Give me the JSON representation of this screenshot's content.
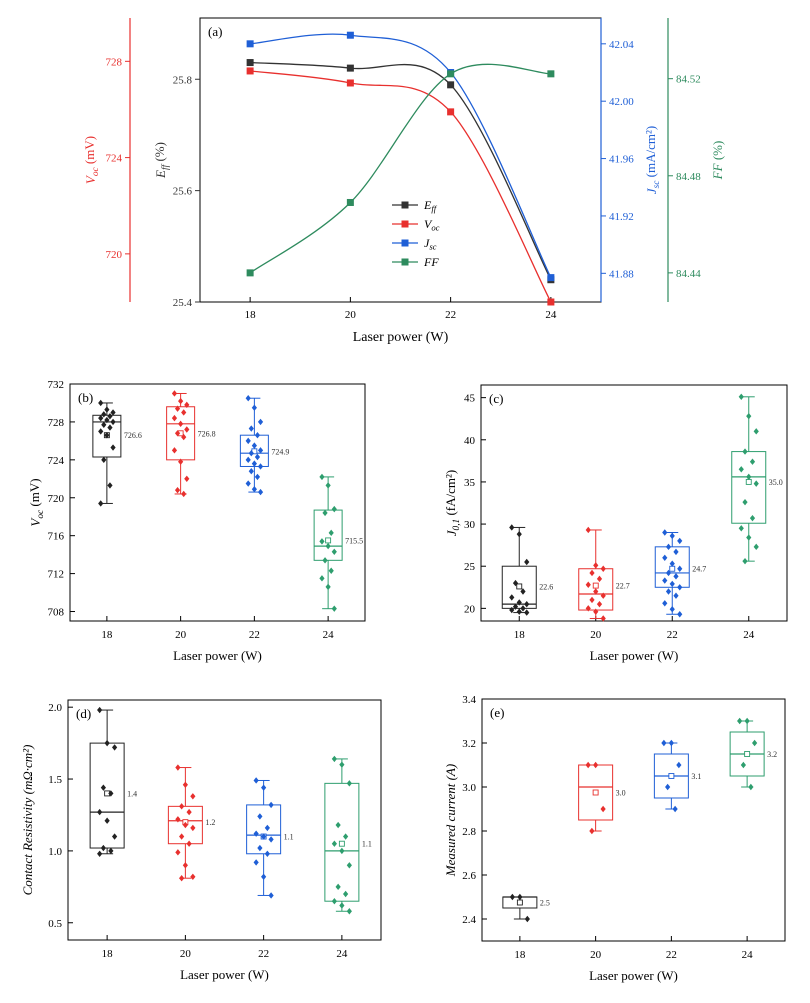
{
  "chart_data": [
    {
      "panel": "(a)",
      "type": "line",
      "xlabel": "Laser power (W)",
      "x": [
        18,
        20,
        22,
        24
      ],
      "xticks": [
        "18",
        "20",
        "22",
        "24"
      ],
      "axes": {
        "voc": {
          "label_main": "V",
          "label_sub": "oc",
          "label_unit": " (mV)",
          "range": [
            718,
            729.8
          ],
          "ticks": [
            720,
            724,
            728
          ],
          "tick_labels": [
            "720",
            "724",
            "728"
          ],
          "color": "#e8302e"
        },
        "eff": {
          "label_main": "E",
          "label_sub": "ff",
          "label_unit": " (%)",
          "range": [
            25.4,
            25.91
          ],
          "ticks": [
            25.4,
            25.6,
            25.8
          ],
          "tick_labels": [
            "25.4",
            "25.6",
            "25.8"
          ],
          "color": "#333333"
        },
        "jsc": {
          "label_main": "J",
          "label_sub": "sc",
          "label_unit": " (mA/cm²)",
          "range": [
            41.86,
            42.058
          ],
          "ticks": [
            41.88,
            41.92,
            41.96,
            42.0,
            42.04
          ],
          "tick_labels": [
            "41.88",
            "41.92",
            "41.96",
            "42.00",
            "42.04"
          ],
          "color": "#1f5fd6"
        },
        "ff": {
          "label_main": "FF",
          "label_unit": " (%)",
          "range": [
            84.428,
            84.545
          ],
          "ticks": [
            84.44,
            84.48,
            84.52
          ],
          "tick_labels": [
            "84.44",
            "84.48",
            "84.52"
          ],
          "color": "#2e8b5e"
        }
      },
      "series": [
        {
          "name": "Eff",
          "label_main": "E",
          "label_sub": "ff",
          "axis": "eff",
          "color": "#333333",
          "values": [
            25.83,
            25.82,
            25.79,
            25.44
          ]
        },
        {
          "name": "Voc",
          "label_main": "V",
          "label_sub": "oc",
          "axis": "voc",
          "color": "#e8302e",
          "values": [
            727.6,
            727.1,
            725.9,
            718.0
          ]
        },
        {
          "name": "Jsc",
          "label_main": "J",
          "label_sub": "sc",
          "axis": "jsc",
          "color": "#1f5fd6",
          "values": [
            42.04,
            42.046,
            42.02,
            41.877
          ]
        },
        {
          "name": "FF",
          "label_main": "FF",
          "axis": "ff",
          "color": "#2e8b5e",
          "values": [
            84.44,
            84.469,
            84.522,
            84.522
          ]
        }
      ]
    },
    {
      "panel": "(b)",
      "type": "box",
      "ylabel_main": "V",
      "ylabel_sub": "oc",
      "ylabel_unit": " (mV)",
      "xlabel": "Laser power (W)",
      "categories": [
        "18",
        "20",
        "22",
        "24"
      ],
      "colors": [
        "#222222",
        "#e8302e",
        "#1f5fd6",
        "#2e9e6e"
      ],
      "ylim": [
        707,
        732
      ],
      "yticks": [
        708,
        712,
        716,
        720,
        724,
        728,
        732
      ],
      "boxes": [
        {
          "min": 719.4,
          "q1": 724.3,
          "median": 728.0,
          "q3": 728.7,
          "max": 730.0,
          "mean": 726.6,
          "mean_label": "726.6",
          "points": [
            730.0,
            729.3,
            729.0,
            728.8,
            728.6,
            728.4,
            728.2,
            728.0,
            727.7,
            727.4,
            727.0,
            726.6,
            725.3,
            724.0,
            721.3,
            719.4
          ]
        },
        {
          "min": 720.4,
          "q1": 724.0,
          "median": 727.8,
          "q3": 729.6,
          "max": 731.0,
          "mean": 726.8,
          "mean_label": "726.8",
          "points": [
            731.0,
            730.2,
            729.8,
            729.4,
            729.0,
            728.4,
            727.8,
            727.2,
            726.8,
            726.4,
            725.0,
            723.8,
            722.0,
            720.8,
            720.4
          ]
        },
        {
          "min": 720.6,
          "q1": 723.3,
          "median": 724.7,
          "q3": 726.6,
          "max": 730.5,
          "mean": 724.9,
          "mean_label": "724.9",
          "points": [
            730.5,
            729.5,
            728.0,
            727.3,
            726.6,
            726.0,
            725.5,
            725.0,
            724.7,
            724.3,
            724.0,
            723.6,
            723.3,
            722.8,
            722.2,
            721.5,
            720.9,
            720.6
          ]
        },
        {
          "min": 708.3,
          "q1": 713.4,
          "median": 714.9,
          "q3": 718.7,
          "max": 722.2,
          "mean": 715.5,
          "mean_label": "715.5",
          "points": [
            722.2,
            721.3,
            718.8,
            718.4,
            716.3,
            715.4,
            714.9,
            714.3,
            713.4,
            712.3,
            711.5,
            710.6,
            708.3
          ]
        }
      ]
    },
    {
      "panel": "(c)",
      "type": "box",
      "ylabel_main": "J",
      "ylabel_sub": "0,1",
      "ylabel_unit": " (fA/cm²)",
      "xlabel": "Laser power (W)",
      "categories": [
        "18",
        "20",
        "22",
        "24"
      ],
      "colors": [
        "#222222",
        "#e8302e",
        "#1f5fd6",
        "#2e9e6e"
      ],
      "ylim": [
        18.5,
        46.5
      ],
      "yticks": [
        20,
        25,
        30,
        35,
        40,
        45
      ],
      "boxes": [
        {
          "min": 19.5,
          "q1": 20.0,
          "median": 20.5,
          "q3": 25.0,
          "max": 29.6,
          "mean": 22.6,
          "mean_label": "22.6",
          "points": [
            29.6,
            28.8,
            25.5,
            23.0,
            22.0,
            21.3,
            20.7,
            20.5,
            20.2,
            20.0,
            19.8,
            19.6,
            19.5
          ]
        },
        {
          "min": 18.8,
          "q1": 19.8,
          "median": 21.7,
          "q3": 24.7,
          "max": 29.3,
          "mean": 22.7,
          "mean_label": "22.7",
          "points": [
            29.3,
            25.1,
            24.7,
            24.2,
            23.5,
            22.8,
            22.0,
            21.5,
            21.0,
            20.5,
            20.0,
            19.6,
            18.8
          ]
        },
        {
          "min": 19.3,
          "q1": 22.5,
          "median": 24.2,
          "q3": 27.3,
          "max": 29.0,
          "mean": 24.7,
          "mean_label": "24.7",
          "points": [
            29.0,
            28.6,
            28.0,
            27.3,
            26.7,
            26.0,
            25.3,
            24.7,
            24.2,
            23.8,
            23.3,
            22.9,
            22.5,
            22.0,
            21.5,
            20.6,
            19.9,
            19.3
          ]
        },
        {
          "min": 25.6,
          "q1": 30.1,
          "median": 35.6,
          "q3": 38.6,
          "max": 45.1,
          "mean": 35.0,
          "mean_label": "35.0",
          "points": [
            45.1,
            42.8,
            41.0,
            38.6,
            37.4,
            36.5,
            35.6,
            34.8,
            32.6,
            30.7,
            29.5,
            28.4,
            27.3,
            25.6
          ]
        }
      ]
    },
    {
      "panel": "(d)",
      "type": "box",
      "ylabel_main": "Contact Resistivity (mΩ·cm²)",
      "xlabel": "Laser power (W)",
      "categories": [
        "18",
        "20",
        "22",
        "24"
      ],
      "colors": [
        "#222222",
        "#e8302e",
        "#1f5fd6",
        "#2e9e6e"
      ],
      "ylim": [
        0.38,
        2.05
      ],
      "yticks": [
        0.5,
        1.0,
        1.5,
        2.0
      ],
      "ytick_labels": [
        "0.5",
        "1.0",
        "1.5",
        "2.0"
      ],
      "boxes": [
        {
          "min": 0.98,
          "q1": 1.02,
          "median": 1.27,
          "q3": 1.75,
          "max": 1.98,
          "mean": 1.4,
          "mean_label": "1.4",
          "points": [
            1.98,
            1.75,
            1.72,
            1.44,
            1.4,
            1.27,
            1.21,
            1.1,
            1.02,
            1.0,
            0.98
          ]
        },
        {
          "min": 0.81,
          "q1": 1.05,
          "median": 1.21,
          "q3": 1.31,
          "max": 1.58,
          "mean": 1.2,
          "mean_label": "1.2",
          "points": [
            1.58,
            1.46,
            1.38,
            1.31,
            1.27,
            1.22,
            1.18,
            1.16,
            1.1,
            1.05,
            0.99,
            0.9,
            0.82,
            0.81
          ]
        },
        {
          "min": 0.69,
          "q1": 0.98,
          "median": 1.11,
          "q3": 1.32,
          "max": 1.49,
          "mean": 1.1,
          "mean_label": "1.1",
          "points": [
            1.49,
            1.44,
            1.32,
            1.24,
            1.16,
            1.12,
            1.1,
            1.08,
            1.02,
            0.98,
            0.92,
            0.82,
            0.69
          ]
        },
        {
          "min": 0.58,
          "q1": 0.65,
          "median": 1.0,
          "q3": 1.47,
          "max": 1.64,
          "mean": 1.05,
          "mean_label": "1.1",
          "points": [
            1.64,
            1.6,
            1.47,
            1.18,
            1.1,
            1.05,
            1.0,
            0.9,
            0.75,
            0.7,
            0.65,
            0.62,
            0.58
          ]
        }
      ]
    },
    {
      "panel": "(e)",
      "type": "box",
      "ylabel_main": "Measured current (A)",
      "xlabel": "Laser power (W)",
      "categories": [
        "18",
        "20",
        "22",
        "24"
      ],
      "colors": [
        "#222222",
        "#e8302e",
        "#1f5fd6",
        "#2e9e6e"
      ],
      "ylim": [
        2.3,
        3.4
      ],
      "yticks": [
        2.4,
        2.6,
        2.8,
        3.0,
        3.2,
        3.4
      ],
      "ytick_labels": [
        "2.4",
        "2.6",
        "2.8",
        "3.0",
        "3.2",
        "3.4"
      ],
      "boxes": [
        {
          "min": 2.4,
          "q1": 2.45,
          "median": 2.5,
          "q3": 2.5,
          "max": 2.5,
          "mean": 2.475,
          "mean_label": "2.5",
          "points": [
            2.5,
            2.5,
            2.4
          ]
        },
        {
          "min": 2.8,
          "q1": 2.85,
          "median": 3.0,
          "q3": 3.1,
          "max": 3.1,
          "mean": 2.975,
          "mean_label": "3.0",
          "points": [
            3.1,
            3.1,
            2.9,
            2.8
          ]
        },
        {
          "min": 2.9,
          "q1": 2.95,
          "median": 3.05,
          "q3": 3.15,
          "max": 3.2,
          "mean": 3.05,
          "mean_label": "3.1",
          "points": [
            3.2,
            3.2,
            3.1,
            3.0,
            2.9
          ]
        },
        {
          "min": 3.0,
          "q1": 3.05,
          "median": 3.15,
          "q3": 3.25,
          "max": 3.3,
          "mean": 3.15,
          "mean_label": "3.2",
          "points": [
            3.3,
            3.3,
            3.2,
            3.1,
            3.0
          ]
        }
      ]
    }
  ]
}
